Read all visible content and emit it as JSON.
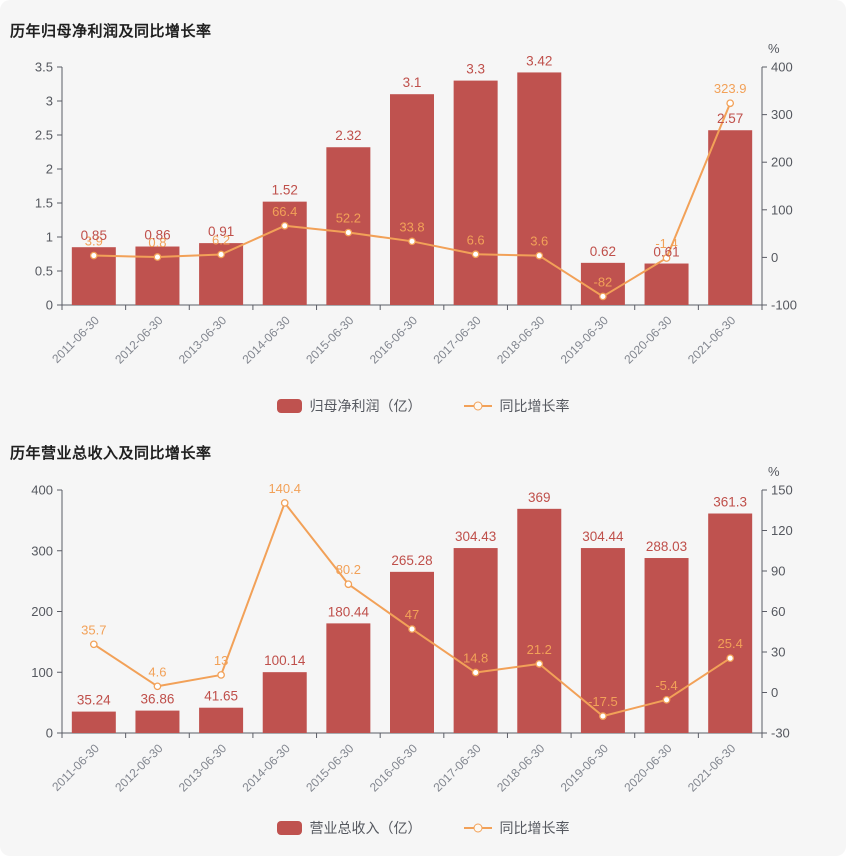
{
  "page": {
    "background": "#f6f6f6"
  },
  "colors": {
    "bar": "#bf524f",
    "bar_label": "#bf4f4a",
    "line": "#f2a158",
    "line_label": "#f2a158",
    "axis": "#5b5d66",
    "tick_text": "#55585f",
    "x_label": "#82868f",
    "title": "#1f1f1f",
    "legend_text": "#55585f"
  },
  "chart_data": [
    {
      "type": "bar+line",
      "title": "历年归母净利润及同比增长率",
      "categories": [
        "2011-06-30",
        "2012-06-30",
        "2013-06-30",
        "2014-06-30",
        "2015-06-30",
        "2016-06-30",
        "2017-06-30",
        "2018-06-30",
        "2019-06-30",
        "2020-06-30",
        "2021-06-30"
      ],
      "series": [
        {
          "name": "归母净利润（亿）",
          "type": "bar",
          "axis": "left",
          "values": [
            0.85,
            0.86,
            0.91,
            1.52,
            2.32,
            3.1,
            3.3,
            3.42,
            0.62,
            0.61,
            2.57
          ],
          "labels": [
            "0.85",
            "0.86",
            "0.91",
            "1.52",
            "2.32",
            "3.1",
            "3.3",
            "3.42",
            "0.62",
            "0.61",
            "2.57"
          ]
        },
        {
          "name": "同比增长率",
          "type": "line",
          "axis": "right",
          "values": [
            3.9,
            0.8,
            6.2,
            66.4,
            52.2,
            33.8,
            6.6,
            3.6,
            -82,
            -1.4,
            323.9
          ],
          "labels": [
            "3.9",
            "0.8",
            "6.2",
            "66.4",
            "52.2",
            "33.8",
            "6.6",
            "3.6",
            "-82",
            "-1.4",
            "323.9"
          ]
        }
      ],
      "left_axis": {
        "min": 0,
        "max": 3.5,
        "ticks": [
          0,
          0.5,
          1,
          1.5,
          2,
          2.5,
          3,
          3.5
        ]
      },
      "right_axis": {
        "min": -100,
        "max": 400,
        "ticks": [
          -100,
          0,
          100,
          200,
          300,
          400
        ],
        "unit": "%"
      },
      "grid": false,
      "legend_position": "bottom"
    },
    {
      "type": "bar+line",
      "title": "历年营业总收入及同比增长率",
      "categories": [
        "2011-06-30",
        "2012-06-30",
        "2013-06-30",
        "2014-06-30",
        "2015-06-30",
        "2016-06-30",
        "2017-06-30",
        "2018-06-30",
        "2019-06-30",
        "2020-06-30",
        "2021-06-30"
      ],
      "series": [
        {
          "name": "营业总收入（亿）",
          "type": "bar",
          "axis": "left",
          "values": [
            35.24,
            36.86,
            41.65,
            100.14,
            180.44,
            265.28,
            304.43,
            369,
            304.44,
            288.03,
            361.3
          ],
          "labels": [
            "35.24",
            "36.86",
            "41.65",
            "100.14",
            "180.44",
            "265.28",
            "304.43",
            "369",
            "304.44",
            "288.03",
            "361.3"
          ]
        },
        {
          "name": "同比增长率",
          "type": "line",
          "axis": "right",
          "values": [
            35.7,
            4.6,
            13,
            140.4,
            80.2,
            47,
            14.8,
            21.2,
            -17.5,
            -5.4,
            25.4
          ],
          "labels": [
            "35.7",
            "4.6",
            "13",
            "140.4",
            "80.2",
            "47",
            "14.8",
            "21.2",
            "-17.5",
            "-5.4",
            "25.4"
          ]
        }
      ],
      "left_axis": {
        "min": 0,
        "max": 400,
        "ticks": [
          0,
          100,
          200,
          300,
          400
        ]
      },
      "right_axis": {
        "min": -30,
        "max": 150,
        "ticks": [
          -30,
          0,
          30,
          60,
          90,
          120,
          150
        ],
        "unit": "%"
      },
      "grid": false,
      "legend_position": "bottom"
    }
  ]
}
